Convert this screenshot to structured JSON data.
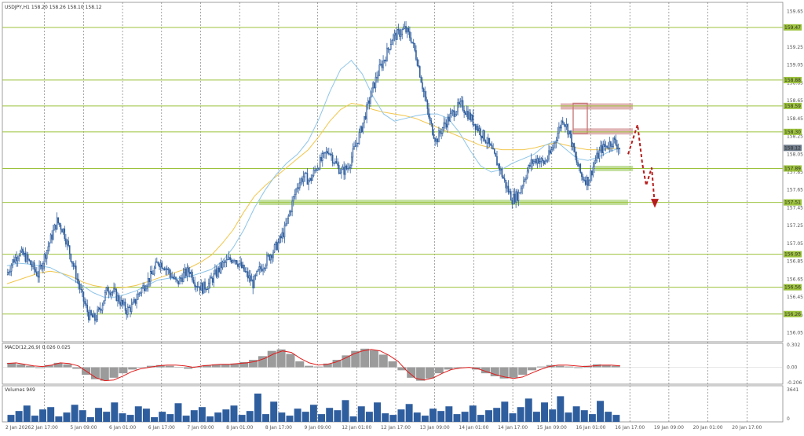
{
  "header": {
    "symbol_label": "USDJPY,H1 158.20 158.26 158.10 158.12",
    "macd_label": "MACD(12,26,9) 0.026 0.025",
    "volume_label": "Volumes 949"
  },
  "colors": {
    "candle_up": "#2f5e9e",
    "ma_fast": "#8ec5e8",
    "ma_slow": "#f2c64b",
    "macd_signal": "#e11d1d",
    "macd_hist": "#9b9b9b",
    "level_line": "#9cc23c",
    "level_label_bg": "#9cc23c",
    "resistance_zone": "#c97a7a",
    "support_zone": "#90c44c",
    "forecast_arrow": "#b71c1c",
    "grid": "#6b6b6b",
    "current_price_bg": "#6f7b8a"
  },
  "chart_data": {
    "type": "candlestick",
    "symbol": "USDJPY",
    "timeframe": "H1",
    "ohlc_last": {
      "open": 158.2,
      "high": 158.26,
      "low": 158.1,
      "close": 158.12
    },
    "y_range": [
      155.95,
      159.75
    ],
    "y_ticks": [
      "159.65",
      "159.25",
      "159.05",
      "158.85",
      "158.65",
      "158.45",
      "158.25",
      "158.05",
      "157.85",
      "157.65",
      "157.45",
      "157.25",
      "157.05",
      "156.85",
      "156.65",
      "156.45",
      "156.25",
      "156.05"
    ],
    "x_labels": [
      "2 Jan 2026",
      "2 Jan 17:00",
      "5 Jan 09:00",
      "6 Jan 01:00",
      "6 Jan 17:00",
      "7 Jan 09:00",
      "8 Jan 01:00",
      "8 Jan 17:00",
      "9 Jan 09:00",
      "12 Jan 01:00",
      "12 Jan 17:00",
      "13 Jan 09:00",
      "14 Jan 01:00",
      "14 Jan 17:00",
      "15 Jan 09:00",
      "16 Jan 01:00",
      "16 Jan 17:00",
      "19 Jan 09:00",
      "20 Jan 01:00",
      "20 Jan 17:00"
    ],
    "levels": [
      {
        "value": 159.47,
        "label": "159.47"
      },
      {
        "value": 158.88,
        "label": "158.88"
      },
      {
        "value": 158.59,
        "label": "158.59"
      },
      {
        "value": 158.3,
        "label": "158.30"
      },
      {
        "value": 157.89,
        "label": "157.89"
      },
      {
        "value": 157.51,
        "label": "157.51"
      },
      {
        "value": 156.93,
        "label": "156.93"
      },
      {
        "value": 156.56,
        "label": "156.56"
      },
      {
        "value": 156.26,
        "label": "156.26"
      }
    ],
    "current_price": {
      "value": 158.12,
      "label": "158.12"
    },
    "path": [
      156.7,
      156.85,
      156.95,
      156.9,
      156.8,
      156.7,
      156.9,
      157.1,
      157.3,
      157.2,
      156.95,
      156.7,
      156.45,
      156.25,
      156.2,
      156.35,
      156.55,
      156.5,
      156.4,
      156.3,
      156.35,
      156.5,
      156.6,
      156.7,
      156.85,
      156.8,
      156.7,
      156.6,
      156.7,
      156.75,
      156.6,
      156.55,
      156.6,
      156.7,
      156.8,
      156.85,
      156.9,
      156.8,
      156.7,
      156.6,
      156.75,
      156.85,
      156.95,
      157.05,
      157.2,
      157.45,
      157.7,
      157.8,
      157.75,
      157.9,
      158.0,
      158.1,
      157.95,
      157.85,
      157.9,
      158.1,
      158.3,
      158.55,
      158.8,
      159.0,
      159.15,
      159.35,
      159.4,
      159.45,
      159.35,
      159.1,
      158.75,
      158.4,
      158.2,
      158.35,
      158.45,
      158.55,
      158.6,
      158.5,
      158.4,
      158.3,
      158.2,
      158.05,
      157.9,
      157.7,
      157.55,
      157.6,
      157.8,
      157.95,
      158.0,
      157.95,
      158.05,
      158.25,
      158.45,
      158.3,
      158.0,
      157.8,
      157.75,
      157.95,
      158.1,
      158.15,
      158.2,
      158.12
    ],
    "ma_fast": [
      156.8,
      156.83,
      156.82,
      156.8,
      156.78,
      156.72,
      156.65,
      156.58,
      156.5,
      156.45,
      156.45,
      156.48,
      156.52,
      156.58,
      156.64,
      156.66,
      156.66,
      156.68,
      156.72,
      156.76,
      156.85,
      157.0,
      157.2,
      157.45,
      157.65,
      157.82,
      157.95,
      158.05,
      158.2,
      158.45,
      158.75,
      159.0,
      159.1,
      158.95,
      158.7,
      158.5,
      158.42,
      158.45,
      158.48,
      158.5,
      158.5,
      158.45,
      158.3,
      158.1,
      157.92,
      157.85,
      157.88,
      157.95,
      158.0,
      158.05,
      158.15,
      158.2,
      158.1,
      158.0,
      157.98,
      158.02,
      158.08,
      158.12
    ],
    "ma_slow": [
      156.6,
      156.64,
      156.68,
      156.72,
      156.74,
      156.72,
      156.68,
      156.62,
      156.58,
      156.56,
      156.55,
      156.56,
      156.58,
      156.62,
      156.66,
      156.7,
      156.74,
      156.78,
      156.84,
      156.92,
      157.05,
      157.2,
      157.4,
      157.58,
      157.7,
      157.8,
      157.9,
      158.0,
      158.1,
      158.25,
      158.42,
      158.55,
      158.62,
      158.6,
      158.55,
      158.52,
      158.5,
      158.48,
      158.45,
      158.4,
      158.35,
      158.3,
      158.25,
      158.2,
      158.15,
      158.12,
      158.1,
      158.1,
      158.1,
      158.12,
      158.15,
      158.18,
      158.15,
      158.12,
      158.1,
      158.1,
      158.11,
      158.12
    ],
    "macd": {
      "y_range": [
        -0.226,
        0.322
      ],
      "y_ticks": [
        "0.302",
        "0.00",
        "-0.206"
      ],
      "signal": [
        0.05,
        0.06,
        0.04,
        0.02,
        0.01,
        0.03,
        0.06,
        0.05,
        0.02,
        -0.06,
        -0.14,
        -0.18,
        -0.17,
        -0.12,
        -0.06,
        -0.02,
        0.0,
        0.02,
        0.03,
        0.03,
        0.02,
        0.0,
        0.02,
        0.03,
        0.04,
        0.04,
        0.05,
        0.06,
        0.08,
        0.12,
        0.18,
        0.22,
        0.2,
        0.12,
        0.06,
        0.03,
        0.04,
        0.07,
        0.12,
        0.18,
        0.22,
        0.24,
        0.22,
        0.16,
        0.08,
        -0.05,
        -0.15,
        -0.17,
        -0.14,
        -0.08,
        -0.03,
        -0.01,
        0.0,
        -0.02,
        -0.06,
        -0.1,
        -0.13,
        -0.15,
        -0.13,
        -0.08,
        -0.03,
        0.01,
        0.03,
        0.03,
        0.02,
        0.01,
        0.02,
        0.03,
        0.03,
        0.02
      ],
      "histogram": [
        0.06,
        0.04,
        0.02,
        -0.01,
        0.03,
        0.06,
        0.04,
        -0.02,
        -0.1,
        -0.16,
        -0.18,
        -0.14,
        -0.08,
        -0.03,
        0.0,
        0.02,
        0.03,
        0.02,
        0.0,
        -0.02,
        0.01,
        0.03,
        0.04,
        0.04,
        0.05,
        0.07,
        0.1,
        0.15,
        0.22,
        0.24,
        0.18,
        0.08,
        0.02,
        0.01,
        0.05,
        0.1,
        0.16,
        0.22,
        0.25,
        0.23,
        0.17,
        0.08,
        -0.04,
        -0.14,
        -0.18,
        -0.15,
        -0.08,
        -0.03,
        -0.01,
        0.0,
        -0.03,
        -0.08,
        -0.12,
        -0.15,
        -0.14,
        -0.1,
        -0.04,
        0.01,
        0.03,
        0.02,
        0.01,
        -0.01,
        0.02,
        0.04,
        0.03,
        0.02
      ]
    },
    "volume": {
      "y_max": 3641,
      "y_ticks": [
        "3641",
        "0"
      ],
      "values": [
        900,
        1400,
        2100,
        800,
        1600,
        1900,
        700,
        1200,
        2200,
        1500,
        600,
        1800,
        1300,
        2500,
        1100,
        900,
        2000,
        1700,
        600,
        1300,
        1000,
        2400,
        800,
        1500,
        1900,
        700,
        1200,
        1600,
        2100,
        900,
        1400,
        3641,
        1000,
        2600,
        1200,
        800,
        1700,
        1300,
        2200,
        1000,
        1800,
        1500,
        2800,
        700,
        2000,
        1300,
        2500,
        1100,
        900,
        1600,
        2300,
        1200,
        800,
        1700,
        1400,
        2000,
        1000,
        1300,
        2100,
        900,
        1500,
        1800,
        2600,
        1100,
        1900,
        3000,
        1300,
        2500,
        1600,
        3300,
        1200,
        2000,
        1500,
        1000,
        2700,
        1300,
        900
      ]
    }
  }
}
